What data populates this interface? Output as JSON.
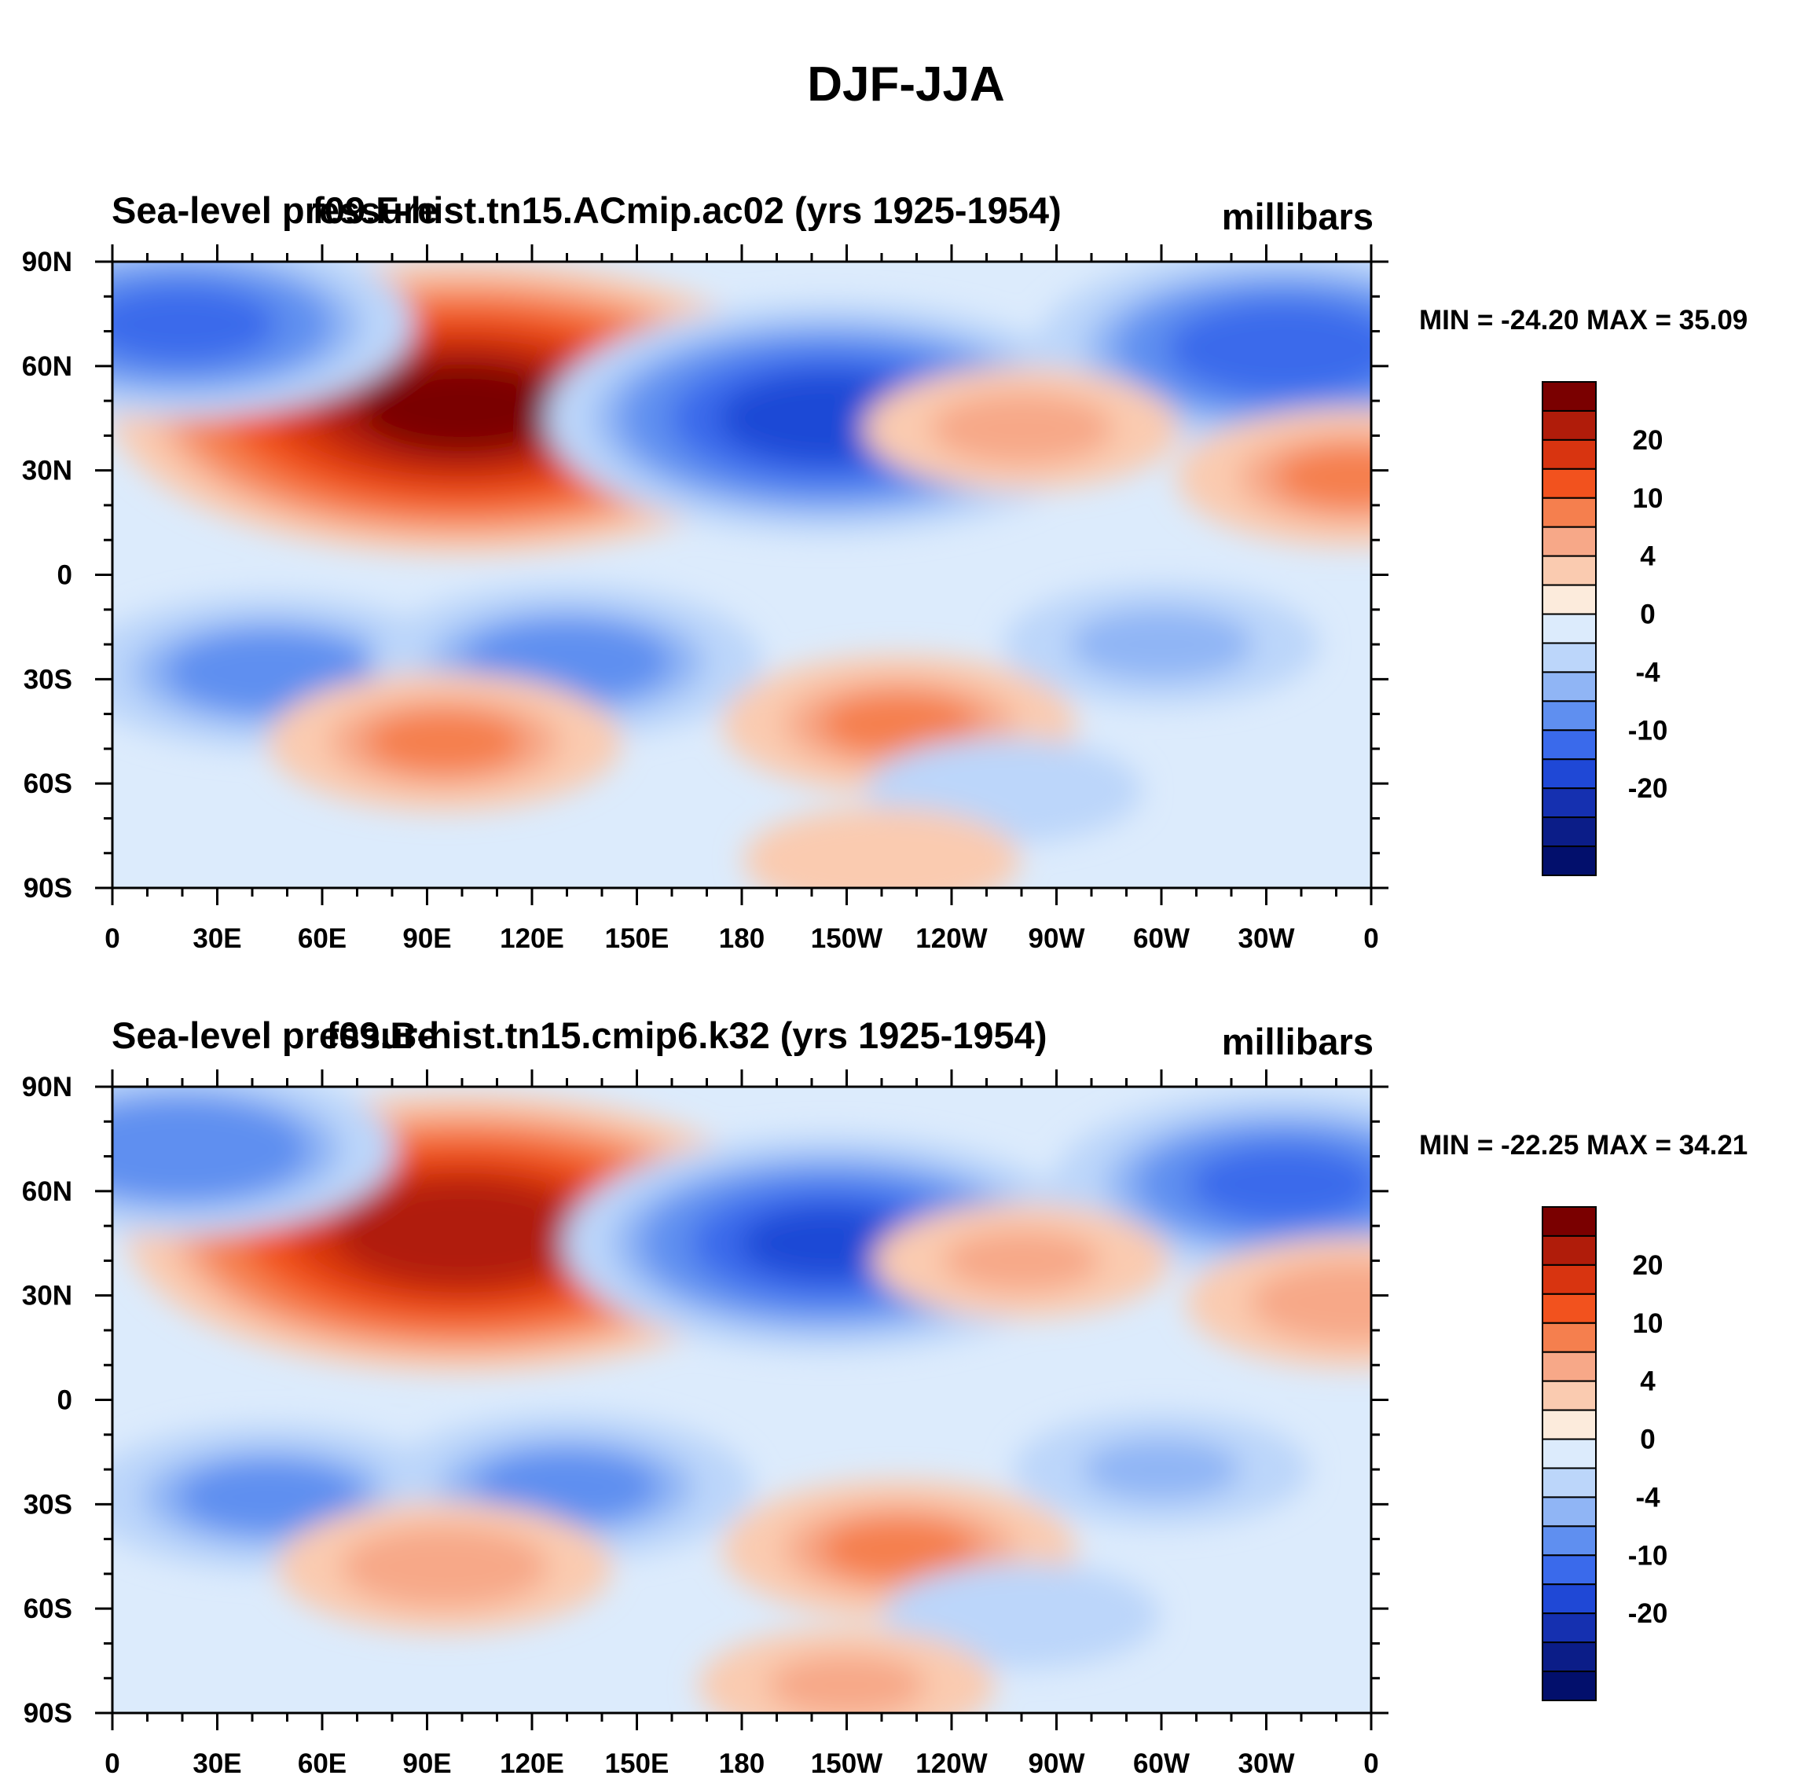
{
  "page_title": "DJF-JJA",
  "panels": [
    {
      "left_title": "Sea-level pressure",
      "center_title": "f09.F-hist.tn15.ACmip.ac02 (yrs 1925-1954)",
      "units": "millibars",
      "minmax": "MIN = -24.20 MAX =  35.09"
    },
    {
      "left_title": "Sea-level pressure",
      "center_title": "f09.B-hist.tn15.cmip6.k32 (yrs 1925-1954)",
      "units": "millibars",
      "minmax": "MIN = -22.25 MAX =  34.21"
    }
  ],
  "chart_data": [
    {
      "type": "heatmap",
      "title": "f09.F-hist.tn15.ACmip.ac02 (yrs 1925-1954)",
      "left_label": "Sea-level pressure",
      "units": "millibars",
      "min": -24.2,
      "max": 35.09,
      "x_tick_labels": [
        "0",
        "30E",
        "60E",
        "90E",
        "120E",
        "150E",
        "180",
        "150W",
        "120W",
        "90W",
        "60W",
        "30W",
        "0"
      ],
      "y_tick_labels": [
        "90N",
        "60N",
        "30N",
        "0",
        "30S",
        "60S",
        "90S"
      ],
      "xlim": [
        0,
        360
      ],
      "ylim": [
        -90,
        90
      ],
      "approx_centers": [
        {
          "lon": 100,
          "lat": 48,
          "value": 30
        },
        {
          "lon": 205,
          "lat": 45,
          "value": -22
        },
        {
          "lon": 20,
          "lat": 72,
          "value": -16
        },
        {
          "lon": 335,
          "lat": 65,
          "value": -18
        },
        {
          "lon": 45,
          "lat": -28,
          "value": -12
        },
        {
          "lon": 130,
          "lat": -25,
          "value": -12
        },
        {
          "lon": 300,
          "lat": -20,
          "value": -8
        },
        {
          "lon": 95,
          "lat": -48,
          "value": 10
        },
        {
          "lon": 225,
          "lat": -43,
          "value": 10
        },
        {
          "lon": 260,
          "lat": 42,
          "value": 8
        },
        {
          "lon": 355,
          "lat": 28,
          "value": 10
        },
        {
          "lon": 255,
          "lat": -62,
          "value": -6
        },
        {
          "lon": 220,
          "lat": -82,
          "value": 6
        }
      ]
    },
    {
      "type": "heatmap",
      "title": "f09.B-hist.tn15.cmip6.k32 (yrs 1925-1954)",
      "left_label": "Sea-level pressure",
      "units": "millibars",
      "min": -22.25,
      "max": 34.21,
      "x_tick_labels": [
        "0",
        "30E",
        "60E",
        "90E",
        "120E",
        "150E",
        "180",
        "150W",
        "120W",
        "90W",
        "60W",
        "30W",
        "0"
      ],
      "y_tick_labels": [
        "90N",
        "60N",
        "30N",
        "0",
        "30S",
        "60S",
        "90S"
      ],
      "xlim": [
        0,
        360
      ],
      "ylim": [
        -90,
        90
      ],
      "approx_centers": [
        {
          "lon": 100,
          "lat": 48,
          "value": 28
        },
        {
          "lon": 205,
          "lat": 45,
          "value": -20
        },
        {
          "lon": 20,
          "lat": 72,
          "value": -14
        },
        {
          "lon": 335,
          "lat": 62,
          "value": -16
        },
        {
          "lon": 45,
          "lat": -28,
          "value": -11
        },
        {
          "lon": 130,
          "lat": -25,
          "value": -11
        },
        {
          "lon": 300,
          "lat": -20,
          "value": -7
        },
        {
          "lon": 95,
          "lat": -48,
          "value": 9
        },
        {
          "lon": 225,
          "lat": -43,
          "value": 10
        },
        {
          "lon": 260,
          "lat": 40,
          "value": 7
        },
        {
          "lon": 355,
          "lat": 28,
          "value": 9
        },
        {
          "lon": 260,
          "lat": -62,
          "value": -6
        },
        {
          "lon": 210,
          "lat": -82,
          "value": 7
        }
      ]
    }
  ],
  "colorbar": {
    "labels": [
      "20",
      "10",
      "4",
      "0",
      "-4",
      "-10",
      "-20"
    ],
    "colors": [
      "#7a0000",
      "#b01c0a",
      "#d83410",
      "#f2521e",
      "#f57f4e",
      "#f7a888",
      "#facbb0",
      "#fcebdc",
      "#dcebfc",
      "#bcd6fa",
      "#90b5f5",
      "#5f8ff0",
      "#3a6aeb",
      "#1f48d6",
      "#1530b0",
      "#0b1d88",
      "#020f6c"
    ]
  }
}
